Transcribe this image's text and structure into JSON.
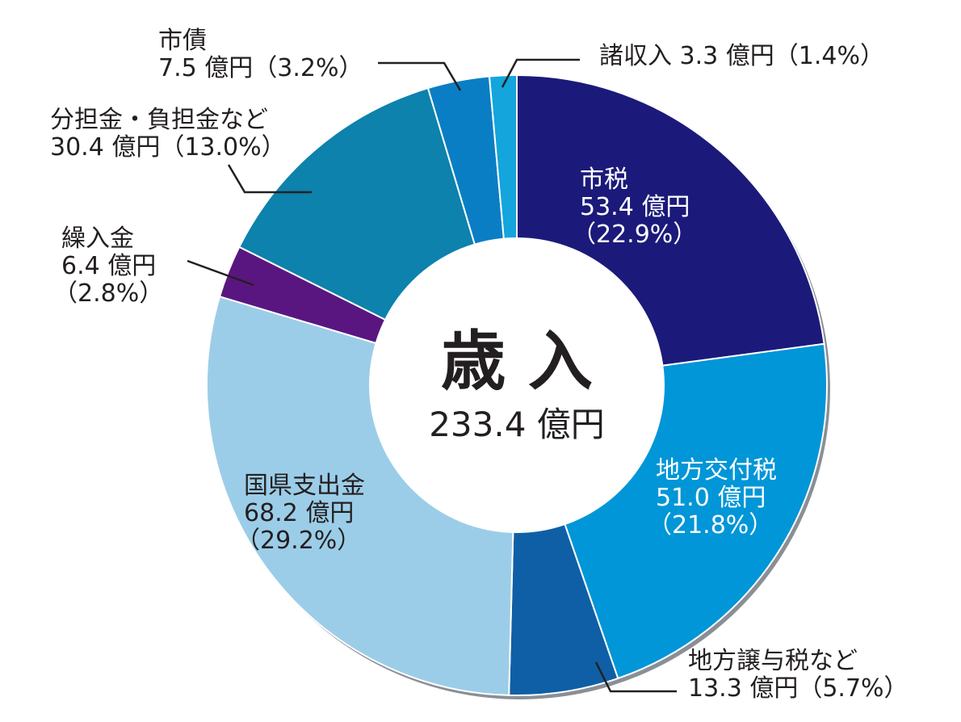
{
  "chart_data": {
    "type": "pie",
    "title": "歳 入",
    "total_label": "233.4 億円",
    "unit": "億円",
    "slices": [
      {
        "name": "市税",
        "value": 53.4,
        "value_label": "53.4 億円",
        "percent": 22.9,
        "percent_label": "（22.9%）",
        "color": "#1b1a7a"
      },
      {
        "name": "地方交付税",
        "value": 51.0,
        "value_label": "51.0 億円",
        "percent": 21.8,
        "percent_label": "（21.8%）",
        "color": "#0096d7"
      },
      {
        "name": "地方譲与税など",
        "value": 13.3,
        "value_label": "13.3 億円",
        "percent": 5.7,
        "percent_label": "（5.7%）",
        "color": "#0f5fa6"
      },
      {
        "name": "国県支出金",
        "value": 68.2,
        "value_label": "68.2 億円",
        "percent": 29.2,
        "percent_label": "（29.2%）",
        "color": "#9ccde8"
      },
      {
        "name": "繰入金",
        "value": 6.4,
        "value_label": "6.4 億円",
        "percent": 2.8,
        "percent_label": "（2.8%）",
        "color": "#5a1680"
      },
      {
        "name": "分担金・負担金など",
        "value": 30.4,
        "value_label": "30.4 億円",
        "percent": 13.0,
        "percent_label": "（13.0%）",
        "color": "#0c82ac"
      },
      {
        "name": "市債",
        "value": 7.5,
        "value_label": "7.5 億円",
        "percent": 3.2,
        "percent_label": "（3.2%）",
        "color": "#0a7ec4"
      },
      {
        "name": "諸収入",
        "value": 3.3,
        "value_label": "3.3 億円",
        "percent": 1.4,
        "percent_label": "（1.4%）",
        "color": "#13a5dc"
      }
    ]
  }
}
